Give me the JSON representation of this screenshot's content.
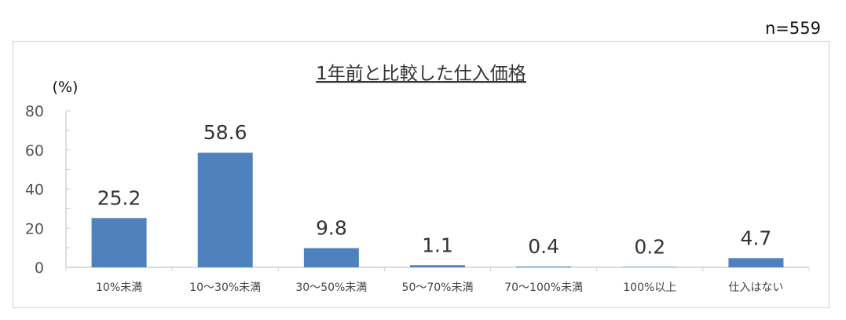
{
  "sample_size": "n=559",
  "chart_data": {
    "type": "bar",
    "title": "1年前と比較した仕入価格",
    "ylabel": "(%)",
    "xlabel": "",
    "categories": [
      "10%未満",
      "10～30%未満",
      "30～50%未満",
      "50～70%未満",
      "70～100%未満",
      "100%以上",
      "仕入はない"
    ],
    "values": [
      25.2,
      58.6,
      9.8,
      1.1,
      0.4,
      0.2,
      4.7
    ],
    "data_labels": [
      "25.2",
      "58.6",
      "9.8",
      "1.1",
      "0.4",
      "0.2",
      "4.7"
    ],
    "ylim": [
      0,
      80
    ],
    "yticks": [
      "0",
      "20",
      "40",
      "60",
      "80"
    ],
    "grid": false,
    "legend": "none",
    "bar_color": "#4f81bd"
  }
}
